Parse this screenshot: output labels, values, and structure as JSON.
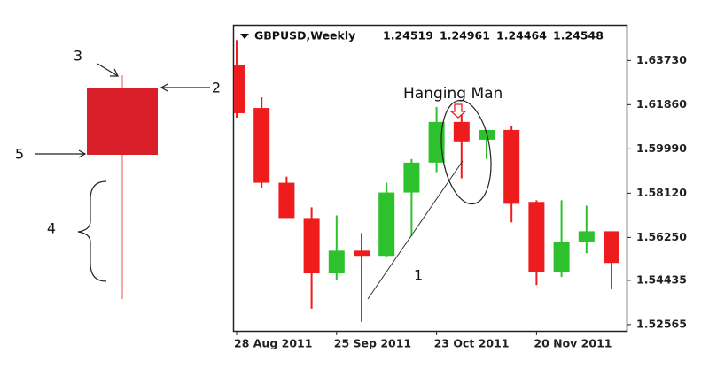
{
  "chart_data": {
    "type": "candlestick",
    "symbol": "GBPUSD,Weekly",
    "header_values": [
      1.24519,
      1.24961,
      1.24464,
      1.24548
    ],
    "categories": [
      "28 Aug 2011",
      null,
      null,
      null,
      "25 Sep 2011",
      null,
      null,
      null,
      "23 Oct 2011",
      null,
      null,
      null,
      "20 Nov 2011",
      null,
      null,
      null
    ],
    "open": [
      1.6354,
      1.6172,
      1.5856,
      1.5707,
      1.5473,
      1.5569,
      1.5547,
      1.5815,
      1.5941,
      1.6113,
      1.6038,
      1.6079,
      1.5775,
      1.548,
      1.5607,
      1.5651
    ],
    "high": [
      1.6459,
      1.6217,
      1.5882,
      1.5752,
      1.5718,
      1.5644,
      1.5856,
      1.5956,
      1.6176,
      1.6154,
      1.6079,
      1.6094,
      1.5782,
      1.5782,
      1.5759,
      1.5651
    ],
    "low": [
      1.6131,
      1.5834,
      1.5707,
      1.5324,
      1.5443,
      1.5268,
      1.554,
      1.5629,
      1.5901,
      1.5875,
      1.5956,
      1.5689,
      1.5424,
      1.5458,
      1.5558,
      1.5406
    ],
    "close": [
      1.615,
      1.5856,
      1.5707,
      1.5473,
      1.5569,
      1.5547,
      1.5815,
      1.5941,
      1.6113,
      1.6031,
      1.6079,
      1.5767,
      1.548,
      1.5607,
      1.5651,
      1.5517
    ],
    "up_color": "#2ec12e",
    "down_color": "#ee1c1c",
    "ylim": [
      1.523,
      1.652
    ],
    "yticks": [
      {
        "value": 1.6373,
        "label": "1.63730"
      },
      {
        "value": 1.6186,
        "label": "1.61860"
      },
      {
        "value": 1.5999,
        "label": "1.59990"
      },
      {
        "value": 1.5812,
        "label": "1.58120"
      },
      {
        "value": 1.5625,
        "label": "1.56250"
      },
      1.54435,
      1.52565
    ],
    "annotations": [
      "Hanging Man",
      "1"
    ]
  },
  "anatomy": {
    "labels": [
      "3",
      "2",
      "5",
      "4"
    ]
  }
}
